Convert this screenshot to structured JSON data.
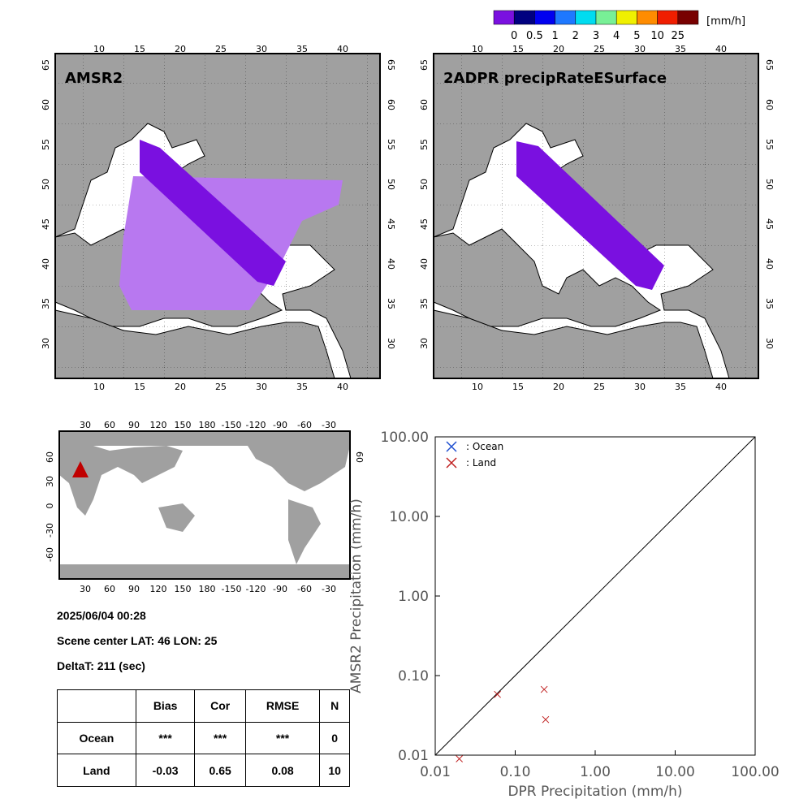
{
  "colorbar": {
    "unit": "[mm/h]",
    "colors": [
      "#7a10e0",
      "#000080",
      "#0000f0",
      "#1e78ff",
      "#00dcf0",
      "#78f096",
      "#f0f000",
      "#ff8c00",
      "#f01e00",
      "#780000"
    ],
    "labels": [
      "0",
      "0.5",
      "1",
      "2",
      "3",
      "4",
      "5",
      "10",
      "25"
    ]
  },
  "map_left": {
    "title": "AMSR2",
    "top_ticks": [
      "10",
      "15",
      "20",
      "25",
      "30",
      "35",
      "40"
    ],
    "bottom_ticks": [
      "10",
      "15",
      "20",
      "25",
      "30",
      "35",
      "40"
    ],
    "lat_ticks": [
      "65",
      "60",
      "55",
      "50",
      "45",
      "40",
      "35",
      "30"
    ]
  },
  "map_right": {
    "title": "2ADPR precipRateESurface",
    "top_ticks": [
      "10",
      "15",
      "20",
      "25",
      "30",
      "35",
      "40"
    ],
    "bottom_ticks": [
      "10",
      "15",
      "20",
      "25",
      "30",
      "35",
      "40"
    ],
    "lat_ticks": [
      "65",
      "60",
      "55",
      "50",
      "45",
      "40",
      "35",
      "30"
    ]
  },
  "world_map": {
    "top_ticks": [
      "30",
      "60",
      "90",
      "120",
      "150",
      "180",
      "-150",
      "-120",
      "-90",
      "-60",
      "-30"
    ],
    "bottom_ticks": [
      "30",
      "60",
      "90",
      "120",
      "150",
      "180",
      "-150",
      "-120",
      "-90",
      "-60",
      "-30"
    ],
    "lat_ticks_left": [
      "60",
      "30",
      "0",
      "-30",
      "-60"
    ],
    "lat_ticks_right": [
      "60"
    ],
    "marker_color": "#c00000"
  },
  "info": {
    "datetime": "2025/06/04 00:28",
    "scene_center": "Scene center LAT: 46   LON:  25",
    "deltat": "DeltaT:  211 (sec)"
  },
  "stats_table": {
    "headers": [
      "",
      "Bias",
      "Cor",
      "RMSE",
      "N"
    ],
    "rows": [
      [
        "Ocean",
        "***",
        "***",
        "***",
        "0"
      ],
      [
        "Land",
        "-0.03",
        "0.65",
        "0.08",
        "10"
      ]
    ]
  },
  "chart_data": {
    "type": "scatter",
    "xlabel": "DPR Precipitation (mm/h)",
    "ylabel": "AMSR2 Precipitation (mm/h)",
    "xscale": "log",
    "yscale": "log",
    "xlim": [
      0.01,
      100
    ],
    "ylim": [
      0.01,
      100
    ],
    "x_ticks": [
      "0.01",
      "0.10",
      "1.00",
      "10.00",
      "100.00"
    ],
    "y_ticks": [
      "0.01",
      "0.10",
      "1.00",
      "10.00",
      "100.00"
    ],
    "legend_placement": "top-left",
    "series": [
      {
        "name": ": Ocean",
        "color": "#1f4fd0",
        "points": []
      },
      {
        "name": ": Land",
        "color": "#c02020",
        "points": [
          [
            0.02,
            0.009
          ],
          [
            0.06,
            0.058
          ],
          [
            0.23,
            0.067
          ],
          [
            0.24,
            0.028
          ]
        ]
      }
    ]
  }
}
